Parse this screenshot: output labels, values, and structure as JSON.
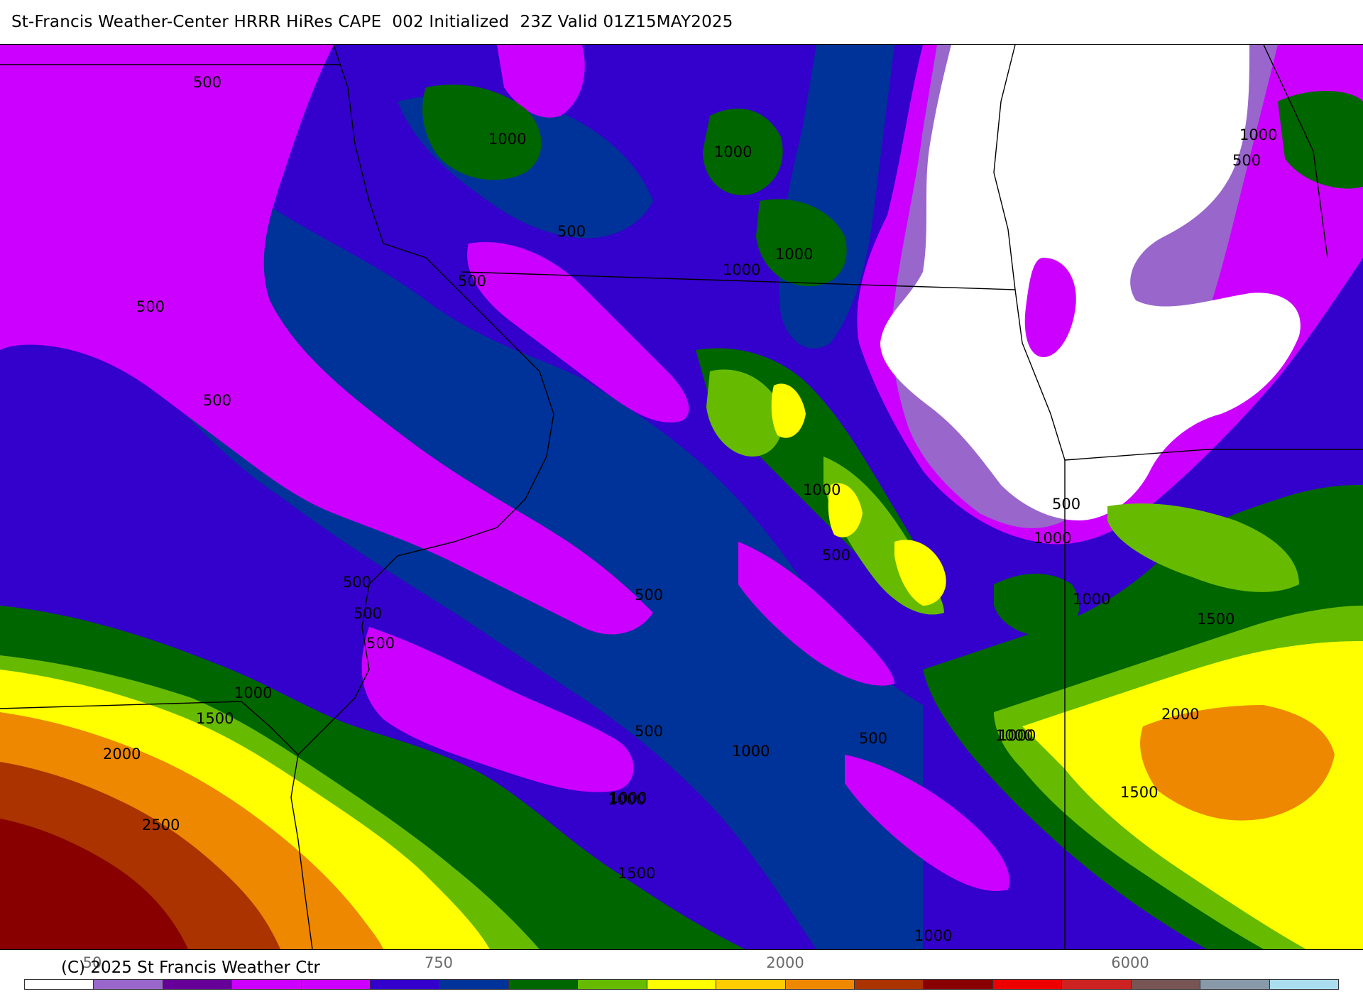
{
  "header": {
    "title": "St-Francis Weather-Center HRRR HiRes CAPE  002 Initialized  23Z Valid 01Z15MAY2025"
  },
  "footer": {
    "copyright": "(C) 2025 St Francis Weather Ctr"
  },
  "colorbar": {
    "tick_labels": [
      "50",
      "750",
      "2000",
      "6000"
    ],
    "colors": [
      "#ffffff",
      "#9966cc",
      "#660099",
      "#cc00ff",
      "#cc00ff",
      "#3300cc",
      "#003399",
      "#006600",
      "#66bb00",
      "#ffff00",
      "#ffcc00",
      "#ee8800",
      "#aa3300",
      "#880000",
      "#ee0000",
      "#cc2222",
      "#775555",
      "#8899aa",
      "#aaddee"
    ]
  },
  "map": {
    "legend_colors": {
      "lt500": "#3300cc",
      "500": "#cc00ff",
      "1000": "#006600",
      "1500": "#66bb00",
      "2000": "#ffff00",
      "2500": "#ee8800",
      "3000": "#aa3300",
      "3500": "#880000",
      "none": "#ffffff",
      "navy": "#003399"
    },
    "contour_labels": [
      "500",
      "1000",
      "1000",
      "500",
      "500",
      "1000",
      "1000",
      "500",
      "1000",
      "1000",
      "500",
      "500",
      "500",
      "500",
      "1000",
      "500",
      "1000",
      "1000",
      "500",
      "500",
      "1500",
      "1000",
      "2000",
      "1000",
      "1500",
      "2000",
      "1000",
      "1500",
      "2500",
      "500",
      "500",
      "1000",
      "1500",
      "1000",
      "500",
      "1000",
      "1000"
    ]
  }
}
